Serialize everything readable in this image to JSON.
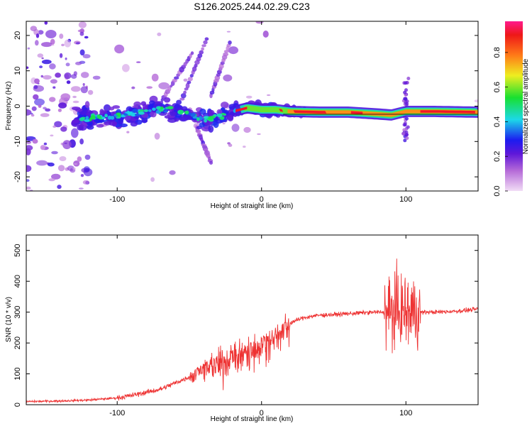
{
  "title": "S126.2025.244.02.29.C23",
  "chart_data": [
    {
      "type": "heatmap",
      "xlabel": "Height of straight line (km)",
      "ylabel": "Frequency (Hz)",
      "xlim": [
        -163,
        150
      ],
      "ylim": [
        -24,
        24
      ],
      "xticks": [
        -100,
        0,
        100
      ],
      "yticks": [
        -20,
        -10,
        0,
        10,
        20
      ],
      "colorbar": {
        "label": "Normalized spectral amplitude",
        "range": [
          0,
          0.98
        ],
        "ticks": [
          0.0,
          0.2,
          0.4,
          0.6,
          0.8
        ]
      },
      "ridge": [
        {
          "x": -125,
          "f": -3.5
        },
        {
          "x": -110,
          "f": -3
        },
        {
          "x": -100,
          "f": -3
        },
        {
          "x": -90,
          "f": -2
        },
        {
          "x": -80,
          "f": -1.5
        },
        {
          "x": -70,
          "f": -0.5
        },
        {
          "x": -60,
          "f": -1.5
        },
        {
          "x": -50,
          "f": -2
        },
        {
          "x": -40,
          "f": -4
        },
        {
          "x": -30,
          "f": -3
        },
        {
          "x": -20,
          "f": -1.5
        },
        {
          "x": -10,
          "f": -0.5
        },
        {
          "x": 0,
          "f": -1
        },
        {
          "x": 10,
          "f": -1
        },
        {
          "x": 20,
          "f": -1.5
        },
        {
          "x": 40,
          "f": -1.7
        },
        {
          "x": 60,
          "f": -1.7
        },
        {
          "x": 80,
          "f": -2.2
        },
        {
          "x": 90,
          "f": -2.5
        },
        {
          "x": 100,
          "f": -1.5
        },
        {
          "x": 120,
          "f": -1.5
        },
        {
          "x": 150,
          "f": -1.7
        }
      ]
    },
    {
      "type": "line",
      "xlabel": "Height of straight line (km)",
      "ylabel": "SNR (10 * v/v)",
      "xlim": [
        -163,
        150
      ],
      "ylim": [
        0,
        550
      ],
      "xticks": [
        -100,
        0,
        100
      ],
      "yticks": [
        0,
        100,
        200,
        300,
        400,
        500
      ],
      "color": "#ee3333",
      "series": [
        {
          "name": "SNR",
          "x": [
            -163,
            -140,
            -120,
            -100,
            -90,
            -80,
            -70,
            -60,
            -50,
            -45,
            -40,
            -35,
            -30,
            -25,
            -20,
            -15,
            -10,
            -5,
            0,
            5,
            10,
            15,
            20,
            25,
            30,
            40,
            50,
            60,
            70,
            80,
            85,
            90,
            95,
            100,
            105,
            110,
            115,
            120,
            130,
            140,
            150
          ],
          "y": [
            10,
            12,
            15,
            22,
            30,
            40,
            50,
            70,
            90,
            110,
            120,
            130,
            140,
            150,
            160,
            170,
            180,
            190,
            200,
            215,
            230,
            250,
            265,
            275,
            283,
            290,
            292,
            295,
            298,
            300,
            300,
            300,
            305,
            300,
            300,
            300,
            300,
            300,
            302,
            305,
            310
          ]
        }
      ]
    }
  ]
}
